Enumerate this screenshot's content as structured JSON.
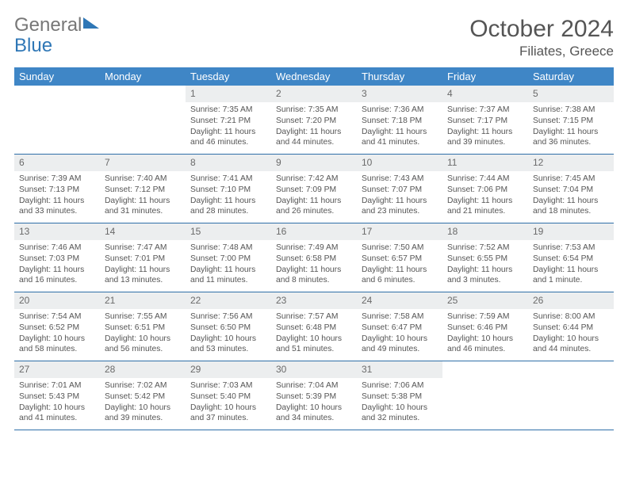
{
  "brand": {
    "word1": "General",
    "word2": "Blue"
  },
  "title": "October 2024",
  "location": "Filiates, Greece",
  "style": {
    "header_bg": "#3f86c6",
    "header_fg": "#ffffff",
    "row_divider": "#2f6fa8",
    "daynum_bg": "#eceeef",
    "daynum_fg": "#6a6a6a",
    "text_color": "#555555",
    "page_bg": "#ffffff",
    "title_fontsize": 30,
    "location_fontsize": 17,
    "dayhead_fontsize": 13,
    "body_fontsize": 10.3
  },
  "day_headers": [
    "Sunday",
    "Monday",
    "Tuesday",
    "Wednesday",
    "Thursday",
    "Friday",
    "Saturday"
  ],
  "weeks": [
    [
      null,
      null,
      {
        "num": "1",
        "sunrise": "Sunrise: 7:35 AM",
        "sunset": "Sunset: 7:21 PM",
        "daylight": "Daylight: 11 hours and 46 minutes."
      },
      {
        "num": "2",
        "sunrise": "Sunrise: 7:35 AM",
        "sunset": "Sunset: 7:20 PM",
        "daylight": "Daylight: 11 hours and 44 minutes."
      },
      {
        "num": "3",
        "sunrise": "Sunrise: 7:36 AM",
        "sunset": "Sunset: 7:18 PM",
        "daylight": "Daylight: 11 hours and 41 minutes."
      },
      {
        "num": "4",
        "sunrise": "Sunrise: 7:37 AM",
        "sunset": "Sunset: 7:17 PM",
        "daylight": "Daylight: 11 hours and 39 minutes."
      },
      {
        "num": "5",
        "sunrise": "Sunrise: 7:38 AM",
        "sunset": "Sunset: 7:15 PM",
        "daylight": "Daylight: 11 hours and 36 minutes."
      }
    ],
    [
      {
        "num": "6",
        "sunrise": "Sunrise: 7:39 AM",
        "sunset": "Sunset: 7:13 PM",
        "daylight": "Daylight: 11 hours and 33 minutes."
      },
      {
        "num": "7",
        "sunrise": "Sunrise: 7:40 AM",
        "sunset": "Sunset: 7:12 PM",
        "daylight": "Daylight: 11 hours and 31 minutes."
      },
      {
        "num": "8",
        "sunrise": "Sunrise: 7:41 AM",
        "sunset": "Sunset: 7:10 PM",
        "daylight": "Daylight: 11 hours and 28 minutes."
      },
      {
        "num": "9",
        "sunrise": "Sunrise: 7:42 AM",
        "sunset": "Sunset: 7:09 PM",
        "daylight": "Daylight: 11 hours and 26 minutes."
      },
      {
        "num": "10",
        "sunrise": "Sunrise: 7:43 AM",
        "sunset": "Sunset: 7:07 PM",
        "daylight": "Daylight: 11 hours and 23 minutes."
      },
      {
        "num": "11",
        "sunrise": "Sunrise: 7:44 AM",
        "sunset": "Sunset: 7:06 PM",
        "daylight": "Daylight: 11 hours and 21 minutes."
      },
      {
        "num": "12",
        "sunrise": "Sunrise: 7:45 AM",
        "sunset": "Sunset: 7:04 PM",
        "daylight": "Daylight: 11 hours and 18 minutes."
      }
    ],
    [
      {
        "num": "13",
        "sunrise": "Sunrise: 7:46 AM",
        "sunset": "Sunset: 7:03 PM",
        "daylight": "Daylight: 11 hours and 16 minutes."
      },
      {
        "num": "14",
        "sunrise": "Sunrise: 7:47 AM",
        "sunset": "Sunset: 7:01 PM",
        "daylight": "Daylight: 11 hours and 13 minutes."
      },
      {
        "num": "15",
        "sunrise": "Sunrise: 7:48 AM",
        "sunset": "Sunset: 7:00 PM",
        "daylight": "Daylight: 11 hours and 11 minutes."
      },
      {
        "num": "16",
        "sunrise": "Sunrise: 7:49 AM",
        "sunset": "Sunset: 6:58 PM",
        "daylight": "Daylight: 11 hours and 8 minutes."
      },
      {
        "num": "17",
        "sunrise": "Sunrise: 7:50 AM",
        "sunset": "Sunset: 6:57 PM",
        "daylight": "Daylight: 11 hours and 6 minutes."
      },
      {
        "num": "18",
        "sunrise": "Sunrise: 7:52 AM",
        "sunset": "Sunset: 6:55 PM",
        "daylight": "Daylight: 11 hours and 3 minutes."
      },
      {
        "num": "19",
        "sunrise": "Sunrise: 7:53 AM",
        "sunset": "Sunset: 6:54 PM",
        "daylight": "Daylight: 11 hours and 1 minute."
      }
    ],
    [
      {
        "num": "20",
        "sunrise": "Sunrise: 7:54 AM",
        "sunset": "Sunset: 6:52 PM",
        "daylight": "Daylight: 10 hours and 58 minutes."
      },
      {
        "num": "21",
        "sunrise": "Sunrise: 7:55 AM",
        "sunset": "Sunset: 6:51 PM",
        "daylight": "Daylight: 10 hours and 56 minutes."
      },
      {
        "num": "22",
        "sunrise": "Sunrise: 7:56 AM",
        "sunset": "Sunset: 6:50 PM",
        "daylight": "Daylight: 10 hours and 53 minutes."
      },
      {
        "num": "23",
        "sunrise": "Sunrise: 7:57 AM",
        "sunset": "Sunset: 6:48 PM",
        "daylight": "Daylight: 10 hours and 51 minutes."
      },
      {
        "num": "24",
        "sunrise": "Sunrise: 7:58 AM",
        "sunset": "Sunset: 6:47 PM",
        "daylight": "Daylight: 10 hours and 49 minutes."
      },
      {
        "num": "25",
        "sunrise": "Sunrise: 7:59 AM",
        "sunset": "Sunset: 6:46 PM",
        "daylight": "Daylight: 10 hours and 46 minutes."
      },
      {
        "num": "26",
        "sunrise": "Sunrise: 8:00 AM",
        "sunset": "Sunset: 6:44 PM",
        "daylight": "Daylight: 10 hours and 44 minutes."
      }
    ],
    [
      {
        "num": "27",
        "sunrise": "Sunrise: 7:01 AM",
        "sunset": "Sunset: 5:43 PM",
        "daylight": "Daylight: 10 hours and 41 minutes."
      },
      {
        "num": "28",
        "sunrise": "Sunrise: 7:02 AM",
        "sunset": "Sunset: 5:42 PM",
        "daylight": "Daylight: 10 hours and 39 minutes."
      },
      {
        "num": "29",
        "sunrise": "Sunrise: 7:03 AM",
        "sunset": "Sunset: 5:40 PM",
        "daylight": "Daylight: 10 hours and 37 minutes."
      },
      {
        "num": "30",
        "sunrise": "Sunrise: 7:04 AM",
        "sunset": "Sunset: 5:39 PM",
        "daylight": "Daylight: 10 hours and 34 minutes."
      },
      {
        "num": "31",
        "sunrise": "Sunrise: 7:06 AM",
        "sunset": "Sunset: 5:38 PM",
        "daylight": "Daylight: 10 hours and 32 minutes."
      },
      null,
      null
    ]
  ]
}
